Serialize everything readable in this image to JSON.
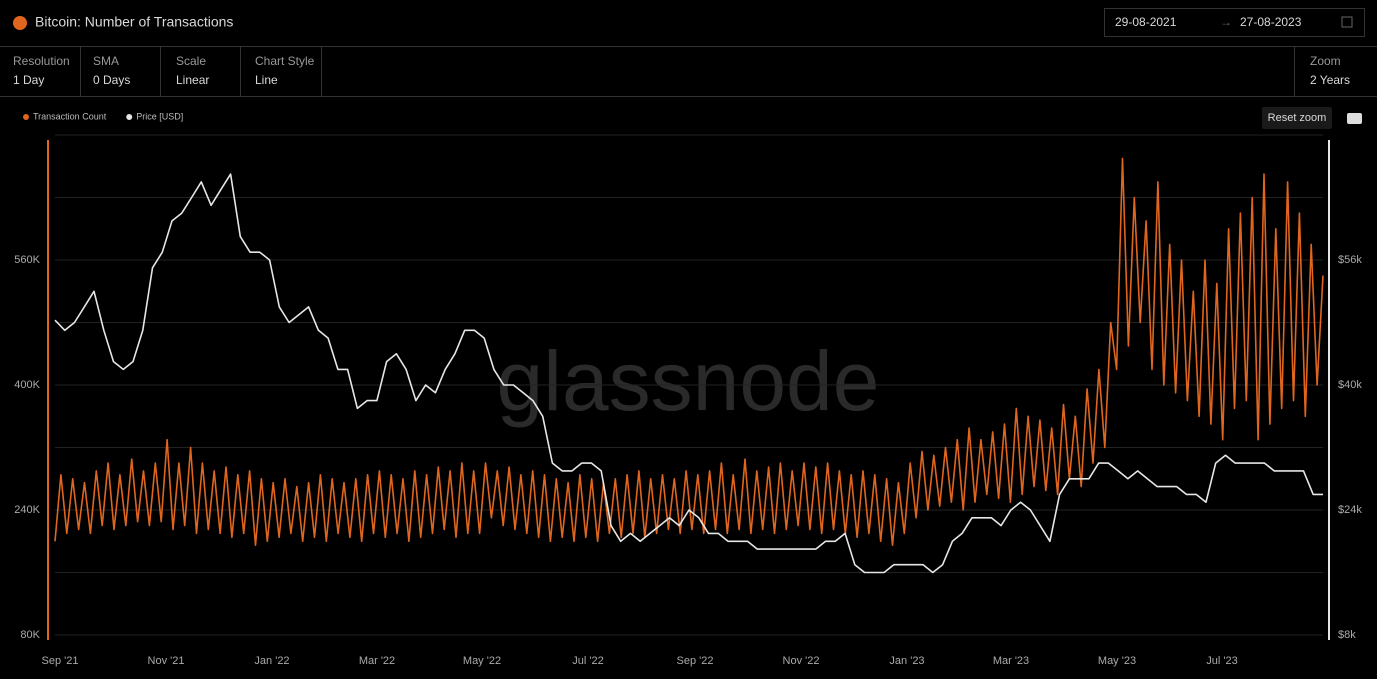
{
  "header": {
    "title": "Bitcoin: Number of Transactions",
    "date_from": "29-08-2021",
    "date_to": "27-08-2023"
  },
  "toolbar": [
    {
      "label": "Resolution",
      "value": "1 Day"
    },
    {
      "label": "SMA",
      "value": "0 Days"
    },
    {
      "label": "Scale",
      "value": "Linear"
    },
    {
      "label": "Chart Style",
      "value": "Line"
    }
  ],
  "zoom": {
    "label": "Zoom",
    "value": "2 Years"
  },
  "reset_zoom": "Reset zoom",
  "chart_data": {
    "type": "line",
    "watermark": "glassnode",
    "x_tick_labels": [
      "Sep '21",
      "Nov '21",
      "Jan '22",
      "Mar '22",
      "May '22",
      "Jul '22",
      "Sep '22",
      "Nov '22",
      "Jan '23",
      "Mar '23",
      "May '23",
      "Jul '23"
    ],
    "series": [
      {
        "name": "Transaction Count",
        "color": "#e0661f",
        "values": [
          200000,
          285000,
          210000,
          280000,
          215000,
          275000,
          210000,
          290000,
          220000,
          300000,
          215000,
          285000,
          220000,
          305000,
          225000,
          290000,
          220000,
          300000,
          225000,
          330000,
          215000,
          300000,
          220000,
          320000,
          210000,
          300000,
          215000,
          290000,
          210000,
          295000,
          205000,
          285000,
          210000,
          290000,
          195000,
          280000,
          200000,
          275000,
          205000,
          280000,
          210000,
          270000,
          200000,
          275000,
          205000,
          285000,
          200000,
          280000,
          210000,
          275000,
          205000,
          280000,
          200000,
          285000,
          210000,
          290000,
          205000,
          285000,
          210000,
          280000,
          200000,
          290000,
          205000,
          285000,
          210000,
          295000,
          215000,
          290000,
          205000,
          300000,
          210000,
          290000,
          210000,
          300000,
          230000,
          290000,
          220000,
          295000,
          215000,
          285000,
          210000,
          290000,
          205000,
          285000,
          200000,
          280000,
          205000,
          275000,
          200000,
          285000,
          205000,
          280000,
          200000,
          275000,
          210000,
          280000,
          205000,
          285000,
          210000,
          290000,
          205000,
          280000,
          210000,
          285000,
          215000,
          280000,
          210000,
          290000,
          215000,
          285000,
          210000,
          290000,
          215000,
          300000,
          210000,
          285000,
          215000,
          305000,
          210000,
          290000,
          215000,
          295000,
          210000,
          300000,
          215000,
          290000,
          220000,
          300000,
          215000,
          295000,
          210000,
          300000,
          215000,
          290000,
          210000,
          285000,
          205000,
          290000,
          210000,
          285000,
          200000,
          280000,
          195000,
          275000,
          210000,
          300000,
          230000,
          315000,
          240000,
          310000,
          245000,
          320000,
          250000,
          330000,
          240000,
          345000,
          250000,
          330000,
          260000,
          340000,
          255000,
          350000,
          250000,
          370000,
          260000,
          360000,
          270000,
          355000,
          265000,
          345000,
          260000,
          375000,
          280000,
          360000,
          270000,
          395000,
          300000,
          420000,
          320000,
          480000,
          420000,
          690000,
          450000,
          640000,
          480000,
          610000,
          420000,
          660000,
          400000,
          580000,
          390000,
          560000,
          380000,
          520000,
          360000,
          560000,
          350000,
          530000,
          330000,
          600000,
          370000,
          620000,
          380000,
          640000,
          330000,
          670000,
          350000,
          600000,
          370000,
          660000,
          380000,
          620000,
          360000,
          580000,
          400000,
          540000
        ]
      },
      {
        "name": "Price [USD]",
        "color": "#e6e6e6",
        "axis": "y2",
        "values": [
          48300,
          47000,
          48000,
          50000,
          52000,
          47000,
          43000,
          42000,
          43000,
          47000,
          55000,
          57000,
          61000,
          62000,
          64000,
          66000,
          63000,
          65000,
          67000,
          59000,
          57000,
          57000,
          56000,
          50000,
          48000,
          49000,
          50000,
          47000,
          46000,
          42000,
          42000,
          37000,
          38000,
          38000,
          43000,
          44000,
          42000,
          38000,
          40000,
          39000,
          42000,
          44000,
          47000,
          47000,
          46000,
          42000,
          40000,
          40000,
          39000,
          38000,
          36000,
          30000,
          29000,
          29000,
          30000,
          30000,
          29000,
          22000,
          20000,
          21000,
          20000,
          21000,
          22000,
          23000,
          22000,
          24000,
          23000,
          21000,
          21000,
          20000,
          20000,
          20000,
          19000,
          19000,
          19000,
          19000,
          19000,
          19000,
          19000,
          20000,
          20000,
          21000,
          17000,
          16000,
          16000,
          16000,
          17000,
          17000,
          17000,
          17000,
          16000,
          17000,
          20000,
          21000,
          23000,
          23000,
          23000,
          22000,
          24000,
          25000,
          24000,
          22000,
          20000,
          26000,
          28000,
          28000,
          28000,
          30000,
          30000,
          29000,
          28000,
          29000,
          28000,
          27000,
          27000,
          27000,
          26000,
          26000,
          25000,
          30000,
          31000,
          30000,
          30000,
          30000,
          30000,
          29000,
          29000,
          29000,
          29000,
          26000,
          26000
        ]
      }
    ],
    "ylim": [
      80000,
      720000
    ],
    "yticks": [
      {
        "value": 80000,
        "label": "80K"
      },
      {
        "value": 240000,
        "label": "240K"
      },
      {
        "value": 400000,
        "label": "400K"
      },
      {
        "value": 560000,
        "label": "560K"
      }
    ],
    "grid_yticks": [
      160000,
      320000,
      480000,
      640000,
      720000
    ],
    "y2lim": [
      8000,
      72000
    ],
    "y2ticks": [
      {
        "value": 8000,
        "label": "$8k"
      },
      {
        "value": 24000,
        "label": "$24k"
      },
      {
        "value": 40000,
        "label": "$40k"
      },
      {
        "value": 56000,
        "label": "$56k"
      }
    ]
  }
}
